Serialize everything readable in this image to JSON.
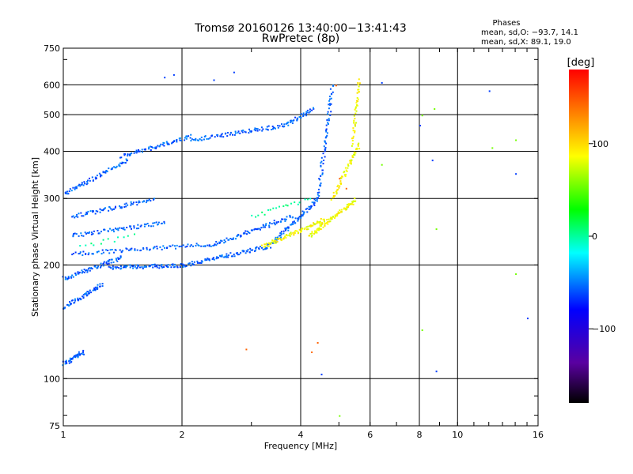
{
  "chart_data": {
    "type": "scatter",
    "title": "Tromsø 20160126 13:40:00−13:41:43",
    "subtitle": "RwPretec (8p)",
    "xlabel": "Frequency [MHz]",
    "ylabel": "Stationary phase Virtual Height [km]",
    "x_scale": "log",
    "y_scale": "log",
    "xlim": [
      1,
      16
    ],
    "ylim": [
      75,
      750
    ],
    "x_ticks": [
      1,
      2,
      4,
      6,
      8,
      10,
      16
    ],
    "x_tick_labels": [
      "1",
      "2",
      "4",
      "6",
      "8",
      "10",
      "16"
    ],
    "y_ticks": [
      75,
      100,
      200,
      300,
      400,
      500,
      600,
      750
    ],
    "y_tick_labels": [
      "75",
      "100",
      "200",
      "300",
      "400",
      "500",
      "600",
      "750"
    ],
    "grid": true,
    "stats": {
      "heading": "Phases",
      "line_o": "mean, sd,O: −93.7, 14.1",
      "line_x": "mean, sd,X:  89.1, 19.0"
    },
    "colorbar": {
      "label": "[deg]",
      "range": [
        -180,
        180
      ],
      "ticks": [
        100,
        0,
        -100
      ],
      "tick_labels": [
        "100",
        "0",
        "−100"
      ],
      "placement": "right"
    },
    "series": [
      {
        "phase": -100,
        "traces": [
          {
            "f_start": 1.0,
            "f_end": 1.12,
            "h_start": 110,
            "h_end": 118,
            "n": 40
          },
          {
            "f_start": 1.0,
            "f_end": 1.25,
            "h_start": 155,
            "h_end": 178,
            "n": 60
          },
          {
            "f_start": 1.0,
            "f_end": 1.4,
            "h_start": 185,
            "h_end": 210,
            "n": 70
          },
          {
            "f_start": 1.3,
            "f_end": 2.0,
            "h_start": 198,
            "h_end": 200,
            "n": 80
          },
          {
            "f_start": 2.0,
            "f_end": 3.3,
            "h_start": 200,
            "h_end": 225,
            "n": 90
          },
          {
            "f_start": 3.3,
            "f_end": 4.4,
            "h_start": 225,
            "h_end": 300,
            "n": 80
          },
          {
            "f_start": 4.4,
            "f_end": 4.8,
            "h_start": 300,
            "h_end": 600,
            "n": 70
          },
          {
            "f_start": 1.05,
            "f_end": 2.4,
            "h_start": 215,
            "h_end": 228,
            "n": 90
          },
          {
            "f_start": 2.4,
            "f_end": 3.8,
            "h_start": 228,
            "h_end": 270,
            "n": 80
          },
          {
            "f_start": 1.05,
            "f_end": 1.8,
            "h_start": 240,
            "h_end": 260,
            "n": 70
          },
          {
            "f_start": 1.05,
            "f_end": 1.7,
            "h_start": 270,
            "h_end": 300,
            "n": 70
          },
          {
            "f_start": 1.0,
            "f_end": 1.45,
            "h_start": 310,
            "h_end": 380,
            "n": 70
          },
          {
            "f_start": 1.4,
            "f_end": 2.1,
            "h_start": 390,
            "h_end": 440,
            "n": 70
          },
          {
            "f_start": 2.1,
            "f_end": 3.6,
            "h_start": 430,
            "h_end": 470,
            "n": 80
          },
          {
            "f_start": 3.6,
            "f_end": 4.3,
            "h_start": 470,
            "h_end": 520,
            "n": 40
          }
        ]
      },
      {
        "phase": 100,
        "traces": [
          {
            "f_start": 3.2,
            "f_end": 4.6,
            "h_start": 225,
            "h_end": 265,
            "n": 90
          },
          {
            "f_start": 4.2,
            "f_end": 5.5,
            "h_start": 240,
            "h_end": 300,
            "n": 90
          },
          {
            "f_start": 4.8,
            "f_end": 5.6,
            "h_start": 300,
            "h_end": 420,
            "n": 60
          },
          {
            "f_start": 5.4,
            "f_end": 5.6,
            "h_start": 420,
            "h_end": 620,
            "n": 40
          }
        ]
      },
      {
        "phase": -20,
        "traces": [
          {
            "f_start": 3.0,
            "f_end": 4.2,
            "h_start": 270,
            "h_end": 300,
            "n": 20
          },
          {
            "f_start": 1.1,
            "f_end": 1.5,
            "h_start": 225,
            "h_end": 240,
            "n": 12
          }
        ]
      },
      {
        "phase": 150,
        "points": [
          {
            "f": 2.9,
            "h": 120
          },
          {
            "f": 4.25,
            "h": 118
          },
          {
            "f": 4.9,
            "h": 600
          },
          {
            "f": 5.0,
            "h": 340
          },
          {
            "f": 5.2,
            "h": 320
          },
          {
            "f": 4.4,
            "h": 125
          }
        ]
      },
      {
        "phase": 60,
        "points": [
          {
            "f": 8.1,
            "h": 500
          },
          {
            "f": 8.7,
            "h": 520
          },
          {
            "f": 8.8,
            "h": 250
          },
          {
            "f": 12.2,
            "h": 410
          },
          {
            "f": 14.0,
            "h": 430
          },
          {
            "f": 14.0,
            "h": 190
          },
          {
            "f": 6.4,
            "h": 370
          },
          {
            "f": 5.0,
            "h": 80
          },
          {
            "f": 8.1,
            "h": 135
          }
        ]
      },
      {
        "phase": -110,
        "points": [
          {
            "f": 6.4,
            "h": 610
          },
          {
            "f": 8.0,
            "h": 470
          },
          {
            "f": 8.6,
            "h": 380
          },
          {
            "f": 8.8,
            "h": 105
          },
          {
            "f": 12.0,
            "h": 580
          },
          {
            "f": 14.0,
            "h": 350
          },
          {
            "f": 15.0,
            "h": 145
          },
          {
            "f": 1.8,
            "h": 630
          },
          {
            "f": 1.9,
            "h": 640
          },
          {
            "f": 2.4,
            "h": 620
          },
          {
            "f": 2.7,
            "h": 650
          },
          {
            "f": 4.5,
            "h": 103
          }
        ]
      }
    ]
  }
}
